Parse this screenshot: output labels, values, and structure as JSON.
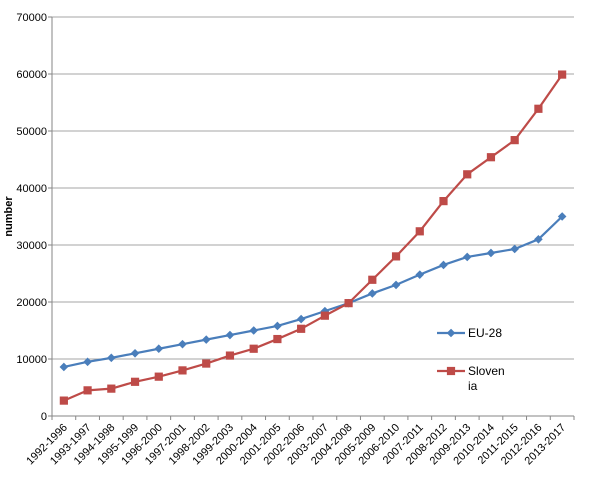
{
  "chart_data": {
    "type": "line",
    "title": "",
    "xlabel": "",
    "ylabel": "number",
    "ylim": [
      0,
      70000
    ],
    "yticks": [
      0,
      10000,
      20000,
      30000,
      40000,
      50000,
      60000,
      70000
    ],
    "grid": "horizontal",
    "legend_position": "right",
    "categories": [
      "1992-1996",
      "1993-1997",
      "1994-1998",
      "1995-1999",
      "1996-2000",
      "1997-2001",
      "1998-2002",
      "1999-2003",
      "2000-2004",
      "2001-2005",
      "2002-2006",
      "2003-2007",
      "2004-2008",
      "2005-2009",
      "2006-2010",
      "2007-2011",
      "2008-2012",
      "2009-2013",
      "2010-2014",
      "2011-2015",
      "2012-2016",
      "2013-2017"
    ],
    "series": [
      {
        "name": "EU-28",
        "color": "#4a7ebb",
        "marker": "diamond",
        "legend_lines": [
          "EU-28"
        ],
        "values": [
          8600,
          9500,
          10200,
          11000,
          11800,
          12600,
          13400,
          14200,
          15000,
          15800,
          17000,
          18400,
          19800,
          21500,
          23000,
          24800,
          26500,
          27900,
          28600,
          29300,
          31000,
          35000
        ]
      },
      {
        "name": "Slovenia",
        "color": "#be4b48",
        "marker": "square",
        "legend_lines": [
          "Sloven",
          "ia"
        ],
        "values": [
          2700,
          4500,
          4800,
          6000,
          6900,
          8000,
          9200,
          10600,
          11800,
          13500,
          15300,
          17600,
          19800,
          23900,
          28000,
          32400,
          37700,
          42400,
          45400,
          48400,
          53900,
          59900
        ]
      }
    ]
  }
}
